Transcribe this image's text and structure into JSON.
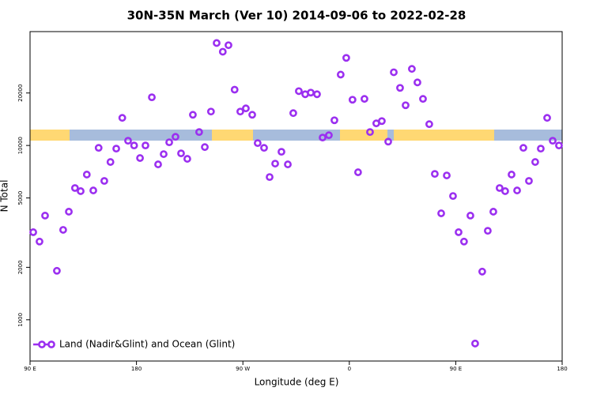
{
  "chart_data": {
    "type": "scatter",
    "title": "30N-35N March (Ver 10)   2014-09-06 to 2022-02-28",
    "xlabel": "Longitude (deg E)",
    "ylabel": "N Total",
    "xlim": [
      90,
      540
    ],
    "xticks": [
      {
        "value": 90,
        "label": "90 E"
      },
      180,
      {
        "value": 270,
        "label": "90 W"
      },
      {
        "value": 360,
        "label": "0"
      },
      {
        "value": 450,
        "label": "90 E"
      },
      {
        "value": 540,
        "label": "180"
      }
    ],
    "ylim": [
      580,
      45000
    ],
    "yscale": "log",
    "yticks": [
      1000,
      2000,
      5000,
      10000,
      20000
    ],
    "legend": "bottom-left",
    "series": [
      {
        "name": "Land (Nadir&Glint) and Ocean (Glint)",
        "color": "#9b2ff0",
        "x": [
          92.7,
          98,
          102.7,
          112.7,
          118,
          122.8,
          128,
          132.8,
          138,
          143.5,
          148,
          152.8,
          158,
          162.9,
          168,
          172.9,
          178,
          183,
          187.6,
          193,
          198.3,
          203,
          207.7,
          213,
          217.7,
          223,
          227.7,
          233,
          237.8,
          243,
          247.8,
          253,
          257.8,
          263,
          267.8,
          272.5,
          277.9,
          282.5,
          287.9,
          292.6,
          297.3,
          302.6,
          308,
          312.6,
          317.3,
          322.7,
          327.4,
          332.7,
          337.4,
          342.7,
          347.4,
          352.7,
          357.4,
          362.7,
          367.4,
          372.8,
          377.5,
          382.8,
          387.5,
          392.9,
          397.6,
          402.9,
          407.6,
          412.9,
          417.6,
          422.3,
          427.6,
          432.3,
          437.7,
          442.4,
          447.7,
          452.4,
          457,
          462.4,
          466.4,
          472.4,
          477.1,
          481.8,
          487.1,
          491.8,
          497.2,
          501.9,
          507.2,
          511.9,
          517.2,
          521.9,
          527.3,
          532,
          537.3
        ],
        "values": [
          3180,
          2810,
          3960,
          1910,
          3280,
          4170,
          5700,
          5470,
          6810,
          5520,
          9690,
          6260,
          8040,
          9590,
          14400,
          10650,
          10000,
          8470,
          10000,
          18900,
          7790,
          8920,
          10430,
          11210,
          9010,
          8380,
          15000,
          11940,
          9790,
          15650,
          38700,
          34500,
          37600,
          20900,
          15650,
          16320,
          15000,
          10320,
          9690,
          6590,
          7870,
          9200,
          7790,
          15330,
          20500,
          19670,
          20100,
          19670,
          11100,
          11450,
          13950,
          25500,
          31800,
          18300,
          7020,
          18500,
          11940,
          13390,
          13800,
          10520,
          26300,
          21400,
          17010,
          27500,
          23000,
          18500,
          13250,
          6870,
          4080,
          6730,
          5130,
          3180,
          2810,
          3960,
          731,
          1890,
          3240,
          4170,
          5700,
          5470,
          6810,
          5520,
          9690,
          6260,
          8040,
          9590,
          14400,
          10650,
          10000
        ]
      }
    ]
  }
}
